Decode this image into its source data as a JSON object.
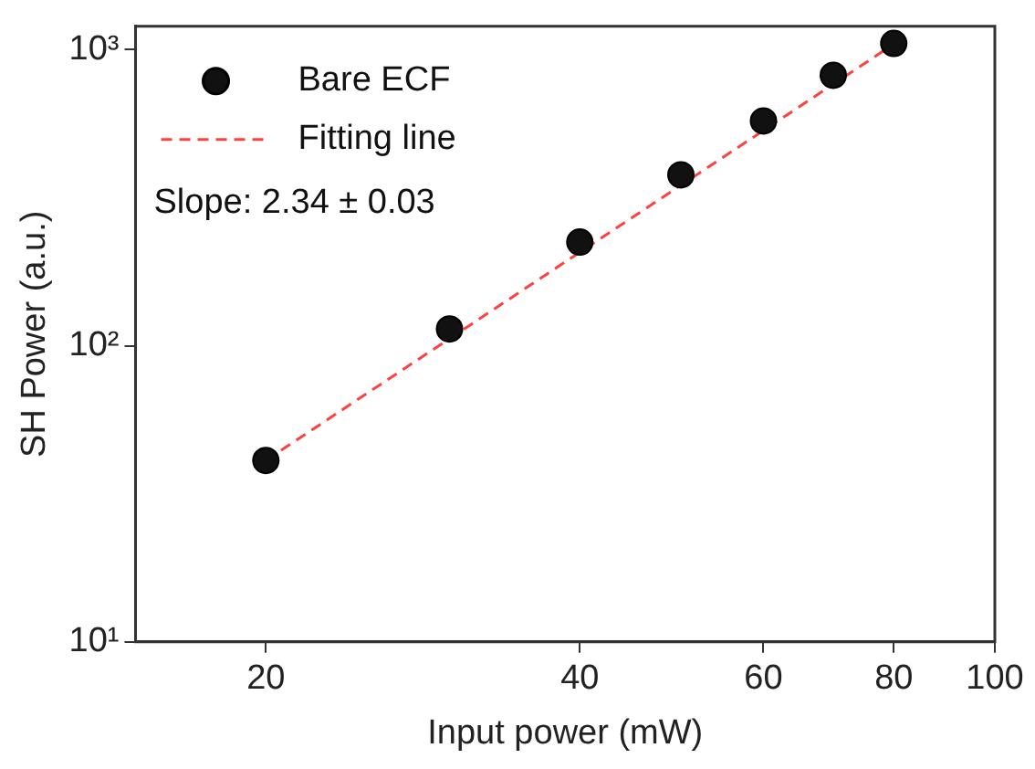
{
  "chart_data": {
    "type": "scatter",
    "xlabel": "Input power (mW)",
    "ylabel": "SH Power (a.u.)",
    "log": "xy",
    "xlim": [
      15,
      100
    ],
    "xticks": [
      20,
      40,
      60,
      80,
      100
    ],
    "ylim": [
      10,
      1200
    ],
    "yticks": [
      {
        "value": 10,
        "label": "10¹"
      },
      {
        "value": 100,
        "label": "10²"
      },
      {
        "value": 1000,
        "label": "10³"
      }
    ],
    "grid": false,
    "legend": "top left",
    "marker": "circle",
    "annotations": [
      "Slope: 2.34 ± 0.03"
    ],
    "series": [
      {
        "name": "Bare ECF",
        "color": "#111111",
        "x": [
          20,
          30,
          40,
          50,
          60,
          70,
          80
        ],
        "values": [
          41,
          114,
          224,
          378,
          575,
          820,
          1050
        ]
      },
      {
        "name": "Fitting line",
        "type": "line",
        "line_style": "dashed",
        "marker": "none",
        "color": "#ff4040",
        "x": [
          20,
          80
        ],
        "values": [
          41,
          1045
        ]
      }
    ]
  }
}
